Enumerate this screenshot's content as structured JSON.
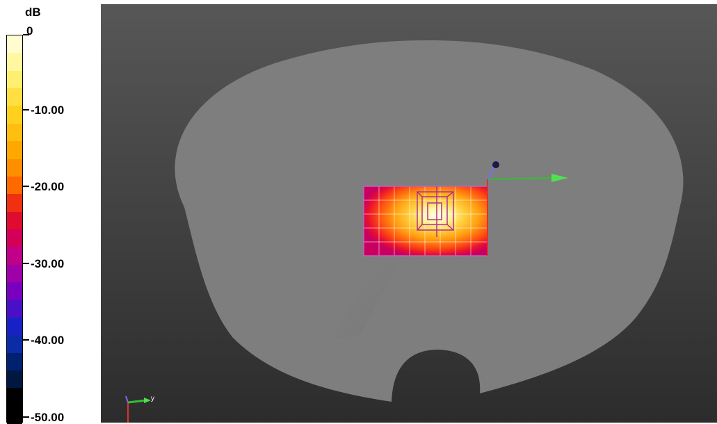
{
  "legend": {
    "unit": "dB",
    "ticks": [
      "0",
      "-10.00",
      "-20.00",
      "-30.00",
      "-40.00",
      "-50.00"
    ],
    "value_min": -50,
    "value_max": 0,
    "bands": [
      "#fffcd0",
      "#fff8a0",
      "#ffee70",
      "#ffe040",
      "#ffd020",
      "#ffbe10",
      "#ffa800",
      "#ff8e00",
      "#ff6a00",
      "#f03010",
      "#e00c30",
      "#d40058",
      "#c00088",
      "#a000a8",
      "#7a00c0",
      "#4a10c8",
      "#1822c4",
      "#0a2ca6",
      "#002070",
      "#001840",
      "#000000",
      "#000000"
    ]
  },
  "viewport": {
    "background": "#484848",
    "phantom_color": "#7e7e7e",
    "axes": {
      "x": "#22c022",
      "y": "#22c022",
      "z": "#8a8aff",
      "origin": "#1a1a5a"
    },
    "corner_axis_label": "y"
  }
}
